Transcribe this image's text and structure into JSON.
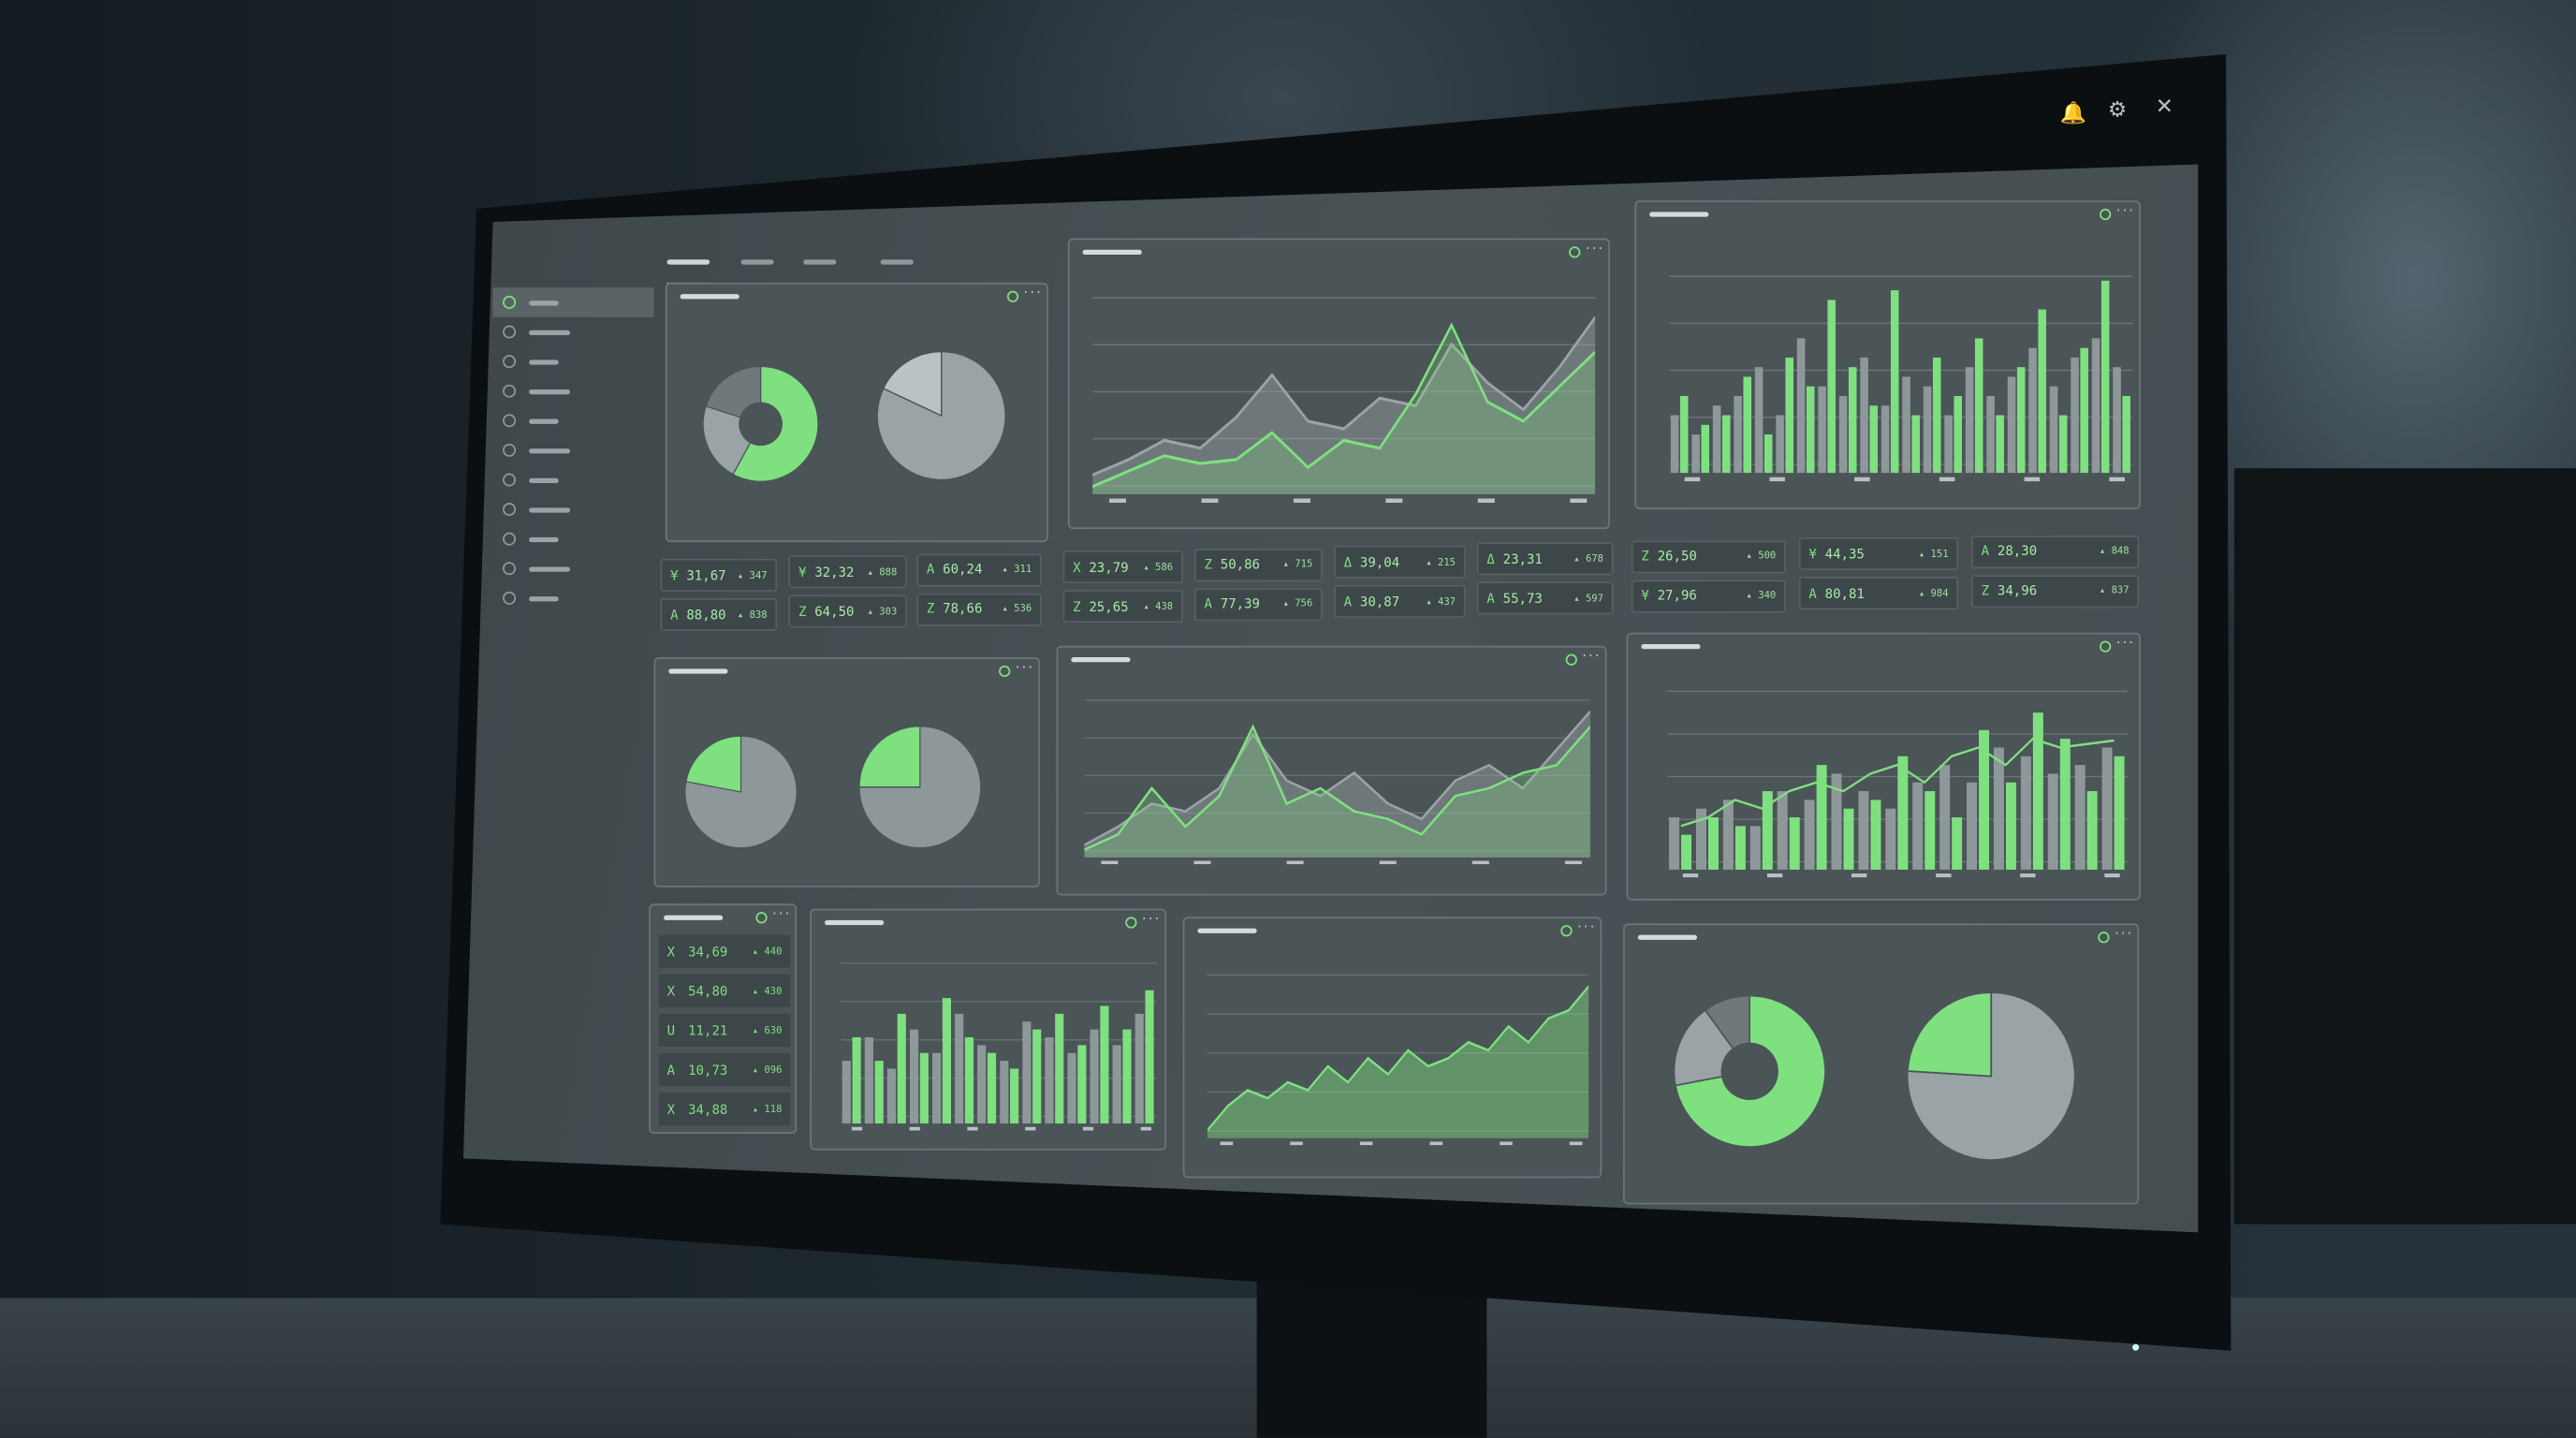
{
  "window_controls": [
    {
      "icon": "bell-icon",
      "glyph": "🔔"
    },
    {
      "icon": "gear-icon",
      "glyph": "⚙"
    },
    {
      "icon": "close-icon",
      "glyph": "✕"
    }
  ],
  "colors": {
    "accent": "#7ee07f",
    "card": "#4b5457",
    "gray_series": "#9aa3a6",
    "background": "#1c262c"
  },
  "sidebar": {
    "item_count": 11,
    "active_index": 0
  },
  "tabs": {
    "count": 4,
    "active_index": 0
  },
  "stat_tiles": [
    {
      "icon": "¥",
      "value": "31,67",
      "delta": "▴ 347"
    },
    {
      "icon": "A",
      "value": "88,80",
      "delta": "▴ 838"
    },
    {
      "icon": "¥",
      "value": "32,32",
      "delta": "▴ 888"
    },
    {
      "icon": "Z",
      "value": "64,50",
      "delta": "▴ 303"
    },
    {
      "icon": "A",
      "value": "60,24",
      "delta": "▴ 311"
    },
    {
      "icon": "Z",
      "value": "78,66",
      "delta": "▴ 536"
    },
    {
      "icon": "X",
      "value": "23,79",
      "delta": "▴ 586"
    },
    {
      "icon": "Z",
      "value": "25,65",
      "delta": "▴ 438"
    },
    {
      "icon": "Z",
      "value": "50,86",
      "delta": "▴ 715"
    },
    {
      "icon": "A",
      "value": "77,39",
      "delta": "▴ 756"
    },
    {
      "icon": "Δ",
      "value": "39,04",
      "delta": "▴ 215"
    },
    {
      "icon": "A",
      "value": "30,87",
      "delta": "▴ 437"
    },
    {
      "icon": "Δ",
      "value": "23,31",
      "delta": "▴ 678"
    },
    {
      "icon": "A",
      "value": "55,73",
      "delta": "▴ 597"
    },
    {
      "icon": "Z",
      "value": "26,50",
      "delta": "▴ 500"
    },
    {
      "icon": "¥",
      "value": "27,96",
      "delta": "▴ 340"
    },
    {
      "icon": "¥",
      "value": "44,35",
      "delta": "▴ 151"
    },
    {
      "icon": "A",
      "value": "80,81",
      "delta": "▴ 984"
    },
    {
      "icon": "A",
      "value": "28,30",
      "delta": "▴ 848"
    },
    {
      "icon": "Z",
      "value": "34,96",
      "delta": "▴ 837"
    }
  ],
  "list_card": [
    {
      "icon": "X",
      "value": "34,69",
      "delta": "▴ 440"
    },
    {
      "icon": "X",
      "value": "54,80",
      "delta": "▴ 430"
    },
    {
      "icon": "U",
      "value": "11,21",
      "delta": "▴ 630"
    },
    {
      "icon": "A",
      "value": "10,73",
      "delta": "▴ 096"
    },
    {
      "icon": "X",
      "value": "34,88",
      "delta": "▴ 118"
    }
  ],
  "chart_data": [
    {
      "id": "pie1",
      "type": "pie",
      "donut": true,
      "values": [
        58,
        22,
        20
      ],
      "colors": [
        "#7ee07f",
        "#9aa3a6",
        "#6f797c"
      ]
    },
    {
      "id": "pie2",
      "type": "pie",
      "values": [
        82,
        18
      ],
      "colors": [
        "#9aa3a6",
        "#b9c2c4"
      ]
    },
    {
      "id": "line1",
      "type": "area",
      "series": [
        {
          "values": [
            10,
            18,
            28,
            24,
            40,
            62,
            38,
            34,
            50,
            46,
            78,
            58,
            44,
            66,
            92
          ],
          "color": "#9aa3a6"
        },
        {
          "values": [
            4,
            12,
            20,
            16,
            18,
            32,
            14,
            28,
            24,
            52,
            88,
            48,
            38,
            56,
            74
          ],
          "color": "#7ee07f"
        }
      ]
    },
    {
      "id": "bar1",
      "type": "bar",
      "series": [
        {
          "values": [
            30,
            20,
            35,
            40,
            55,
            30,
            70,
            45,
            40,
            60,
            35,
            50,
            45,
            30,
            55,
            40,
            50,
            65,
            45,
            60,
            70,
            55
          ],
          "color": "#8e989b"
        },
        {
          "values": [
            40,
            25,
            30,
            50,
            20,
            60,
            45,
            90,
            55,
            35,
            95,
            30,
            60,
            40,
            70,
            30,
            55,
            85,
            30,
            65,
            100,
            40
          ],
          "color": "#7ee07f"
        }
      ]
    },
    {
      "id": "pie3",
      "type": "pie",
      "values": [
        78,
        22
      ],
      "colors": [
        "#8e989b",
        "#7ee07f"
      ]
    },
    {
      "id": "pie4",
      "type": "pie",
      "values": [
        75,
        25
      ],
      "colors": [
        "#8e989b",
        "#7ee07f"
      ]
    },
    {
      "id": "line2",
      "type": "area",
      "series": [
        {
          "values": [
            8,
            20,
            35,
            30,
            45,
            80,
            50,
            40,
            55,
            35,
            25,
            50,
            60,
            45,
            70,
            95
          ],
          "color": "#9aa3a6"
        },
        {
          "values": [
            5,
            15,
            45,
            20,
            40,
            85,
            35,
            45,
            30,
            25,
            15,
            40,
            45,
            55,
            60,
            85
          ],
          "color": "#7ee07f"
        }
      ]
    },
    {
      "id": "bar2",
      "type": "bar",
      "series": [
        {
          "values": [
            30,
            35,
            40,
            25,
            45,
            40,
            55,
            45,
            35,
            50,
            60,
            50,
            70,
            65,
            55,
            60,
            70
          ],
          "color": "#8e989b"
        },
        {
          "values": [
            20,
            30,
            25,
            45,
            30,
            60,
            35,
            40,
            65,
            45,
            30,
            80,
            50,
            90,
            75,
            45,
            65
          ],
          "color": "#7ee07f"
        }
      ],
      "line": [
        25,
        30,
        40,
        35,
        45,
        50,
        45,
        55,
        60,
        50,
        65,
        70,
        60,
        75,
        70,
        72,
        74
      ]
    },
    {
      "id": "bar3",
      "type": "bar",
      "series": [
        {
          "values": [
            40,
            55,
            35,
            60,
            45,
            70,
            50,
            40,
            65,
            55,
            45,
            60,
            50,
            70
          ],
          "color": "#8e989b"
        },
        {
          "values": [
            55,
            40,
            70,
            45,
            80,
            55,
            45,
            35,
            60,
            70,
            50,
            75,
            60,
            85
          ],
          "color": "#7ee07f"
        }
      ]
    },
    {
      "id": "line3",
      "type": "area",
      "series": [
        {
          "values": [
            5,
            20,
            30,
            25,
            35,
            30,
            45,
            35,
            50,
            40,
            55,
            45,
            50,
            60,
            55,
            70,
            60,
            75,
            80,
            95
          ],
          "color": "#7ee07f"
        }
      ]
    },
    {
      "id": "pie5",
      "type": "pie",
      "donut": true,
      "values": [
        72,
        18,
        10
      ],
      "colors": [
        "#7ee07f",
        "#9aa3a6",
        "#6f797c"
      ]
    },
    {
      "id": "pie6",
      "type": "pie",
      "values": [
        76,
        24
      ],
      "colors": [
        "#9aa3a6",
        "#7ee07f"
      ]
    }
  ]
}
